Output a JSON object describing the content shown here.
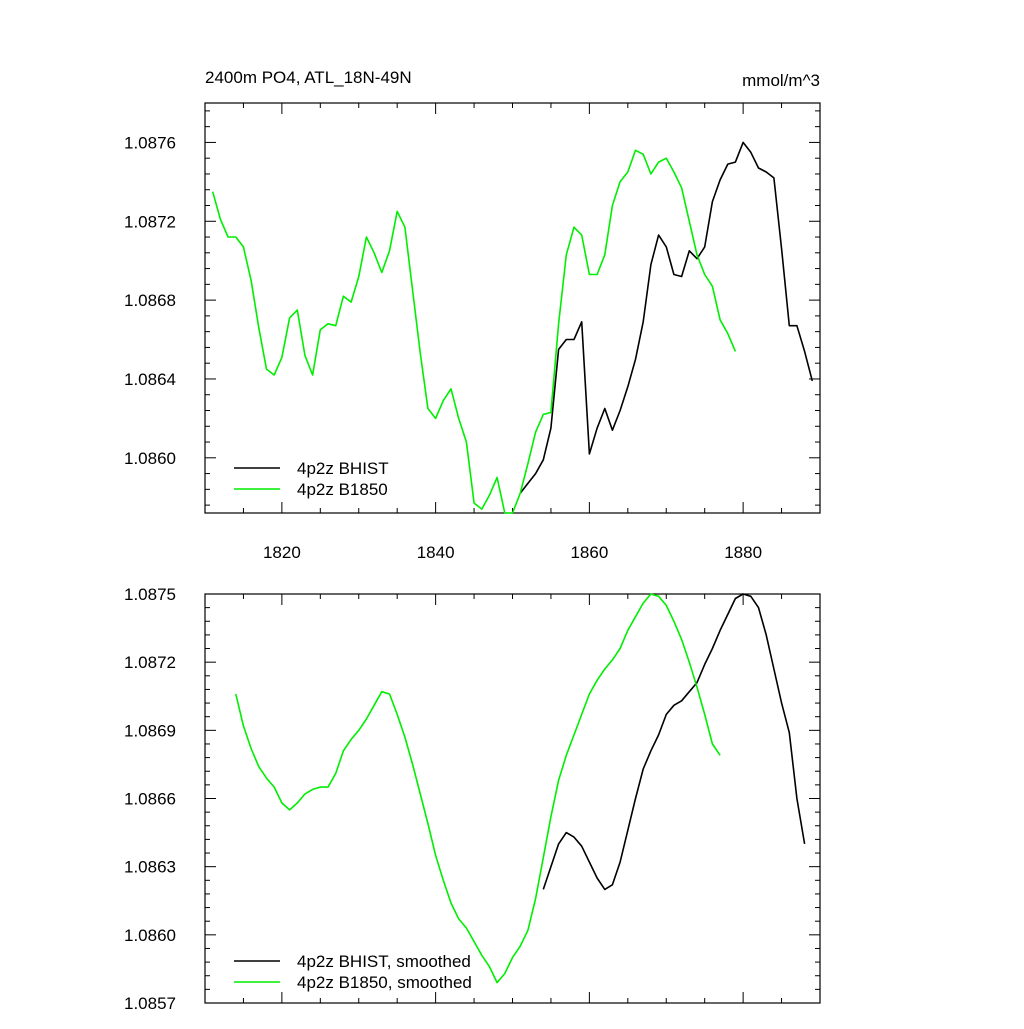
{
  "colors": {
    "BHIST": "#000000",
    "B1850": "#00ee00"
  },
  "chart_data": [
    {
      "type": "line",
      "title": "2400m PO4, ATL_18N-49N",
      "title_right": "mmol/m^3",
      "xlim": [
        1810,
        1890
      ],
      "ylim": [
        1.08572,
        1.0878
      ],
      "x_ticks": [
        1820,
        1840,
        1860,
        1880
      ],
      "x_tick_labels": [
        "1820",
        "1840",
        "1860",
        "1880"
      ],
      "y_ticks": [
        1.086,
        1.0864,
        1.0868,
        1.0872,
        1.0876
      ],
      "y_tick_labels": [
        "1.0860",
        "1.0864",
        "1.0868",
        "1.0872",
        "1.0876"
      ],
      "legend": "bottom-left",
      "series": [
        {
          "name": "4p2z BHIST",
          "color_key": "BHIST",
          "x": [
            1851,
            1852,
            1853,
            1854,
            1855,
            1856,
            1857,
            1858,
            1859,
            1860,
            1861,
            1862,
            1863,
            1864,
            1865,
            1866,
            1867,
            1868,
            1869,
            1870,
            1871,
            1872,
            1873,
            1874,
            1875,
            1876,
            1877,
            1878,
            1879,
            1880,
            1881,
            1882,
            1883,
            1884,
            1885,
            1886,
            1887,
            1888,
            1889
          ],
          "y": [
            1.08582,
            1.08587,
            1.08592,
            1.08599,
            1.08615,
            1.08655,
            1.0866,
            1.0866,
            1.08669,
            1.08602,
            1.08615,
            1.08625,
            1.08614,
            1.08624,
            1.08636,
            1.0865,
            1.08669,
            1.08698,
            1.08713,
            1.08707,
            1.08693,
            1.08692,
            1.08705,
            1.08701,
            1.08707,
            1.0873,
            1.08741,
            1.08749,
            1.0875,
            1.0876,
            1.08755,
            1.08747,
            1.08745,
            1.08742,
            1.08706,
            1.08667,
            1.08667,
            1.08654,
            1.08639
          ]
        },
        {
          "name": "4p2z B1850",
          "color_key": "B1850",
          "x": [
            1811,
            1812,
            1813,
            1814,
            1815,
            1816,
            1817,
            1818,
            1819,
            1820,
            1821,
            1822,
            1823,
            1824,
            1825,
            1826,
            1827,
            1828,
            1829,
            1830,
            1831,
            1832,
            1833,
            1834,
            1835,
            1836,
            1837,
            1838,
            1839,
            1840,
            1841,
            1842,
            1843,
            1844,
            1845,
            1846,
            1847,
            1848,
            1849,
            1850,
            1851,
            1852,
            1853,
            1854,
            1855,
            1856,
            1857,
            1858,
            1859,
            1860,
            1861,
            1862,
            1863,
            1864,
            1865,
            1866,
            1867,
            1868,
            1869,
            1870,
            1871,
            1872,
            1873,
            1874,
            1875,
            1876,
            1877,
            1878,
            1879
          ],
          "y": [
            1.08735,
            1.08721,
            1.08712,
            1.08712,
            1.08707,
            1.0869,
            1.08666,
            1.08645,
            1.08642,
            1.08651,
            1.08671,
            1.08675,
            1.08652,
            1.08642,
            1.08665,
            1.08668,
            1.08667,
            1.08682,
            1.08679,
            1.08692,
            1.08712,
            1.08704,
            1.08694,
            1.08705,
            1.08725,
            1.08717,
            1.08685,
            1.08653,
            1.08625,
            1.0862,
            1.08629,
            1.08635,
            1.0862,
            1.08608,
            1.08577,
            1.08574,
            1.08581,
            1.0859,
            1.08572,
            1.08572,
            1.08582,
            1.08597,
            1.08613,
            1.08622,
            1.08623,
            1.08668,
            1.08703,
            1.08717,
            1.08713,
            1.08693,
            1.08693,
            1.08703,
            1.08728,
            1.0874,
            1.08745,
            1.08756,
            1.08754,
            1.08744,
            1.0875,
            1.08752,
            1.08745,
            1.08737,
            1.0872,
            1.08703,
            1.08693,
            1.08687,
            1.0867,
            1.08663,
            1.08654
          ]
        }
      ]
    },
    {
      "type": "line",
      "title": "",
      "xlim": [
        1810,
        1890
      ],
      "ylim": [
        1.0857,
        1.0875
      ],
      "x_ticks": [
        1820,
        1840,
        1860,
        1880
      ],
      "y_ticks": [
        1.0857,
        1.086,
        1.0863,
        1.0866,
        1.0869,
        1.0872,
        1.0875
      ],
      "y_tick_labels": [
        "1.0857",
        "1.0860",
        "1.0863",
        "1.0866",
        "1.0869",
        "1.0872",
        "1.0875"
      ],
      "legend": "bottom-left",
      "series": [
        {
          "name": "4p2z BHIST, smoothed",
          "color_key": "BHIST",
          "x": [
            1854,
            1855,
            1856,
            1857,
            1858,
            1859,
            1860,
            1861,
            1862,
            1863,
            1864,
            1865,
            1866,
            1867,
            1868,
            1869,
            1870,
            1871,
            1872,
            1873,
            1874,
            1875,
            1876,
            1877,
            1878,
            1879,
            1880,
            1881,
            1882,
            1883,
            1884,
            1885,
            1886,
            1887,
            1888
          ],
          "y": [
            1.0862,
            1.0863,
            1.0864,
            1.08645,
            1.08643,
            1.08639,
            1.08632,
            1.08625,
            1.0862,
            1.08622,
            1.08632,
            1.08646,
            1.0866,
            1.08673,
            1.08681,
            1.08688,
            1.08697,
            1.08701,
            1.08703,
            1.08707,
            1.08711,
            1.08719,
            1.08726,
            1.08734,
            1.08741,
            1.08748,
            1.0875,
            1.08749,
            1.08744,
            1.08732,
            1.08717,
            1.08702,
            1.08689,
            1.0866,
            1.0864
          ]
        },
        {
          "name": "4p2z B1850, smoothed",
          "color_key": "B1850",
          "x": [
            1814,
            1815,
            1816,
            1817,
            1818,
            1819,
            1820,
            1821,
            1822,
            1823,
            1824,
            1825,
            1826,
            1827,
            1828,
            1829,
            1830,
            1831,
            1832,
            1833,
            1834,
            1835,
            1836,
            1837,
            1838,
            1839,
            1840,
            1841,
            1842,
            1843,
            1844,
            1845,
            1846,
            1847,
            1848,
            1849,
            1850,
            1851,
            1852,
            1853,
            1854,
            1855,
            1856,
            1857,
            1858,
            1859,
            1860,
            1861,
            1862,
            1863,
            1864,
            1865,
            1866,
            1867,
            1868,
            1869,
            1870,
            1871,
            1872,
            1873,
            1874,
            1875,
            1876,
            1877
          ],
          "y": [
            1.08706,
            1.08692,
            1.08682,
            1.08674,
            1.08669,
            1.08665,
            1.08658,
            1.08655,
            1.08658,
            1.08662,
            1.08664,
            1.08665,
            1.08665,
            1.08671,
            1.08681,
            1.08686,
            1.0869,
            1.08695,
            1.08701,
            1.08707,
            1.08706,
            1.08697,
            1.08687,
            1.08675,
            1.08662,
            1.08649,
            1.08635,
            1.08624,
            1.08614,
            1.08607,
            1.08603,
            1.08597,
            1.08591,
            1.08586,
            1.08579,
            1.08583,
            1.0859,
            1.08595,
            1.08602,
            1.08616,
            1.08634,
            1.08652,
            1.08668,
            1.08679,
            1.08688,
            1.08697,
            1.08706,
            1.08712,
            1.08717,
            1.08721,
            1.08726,
            1.08734,
            1.0874,
            1.08746,
            1.0875,
            1.08749,
            1.08745,
            1.08738,
            1.0873,
            1.0872,
            1.08709,
            1.08697,
            1.08684,
            1.08679
          ]
        }
      ]
    }
  ]
}
